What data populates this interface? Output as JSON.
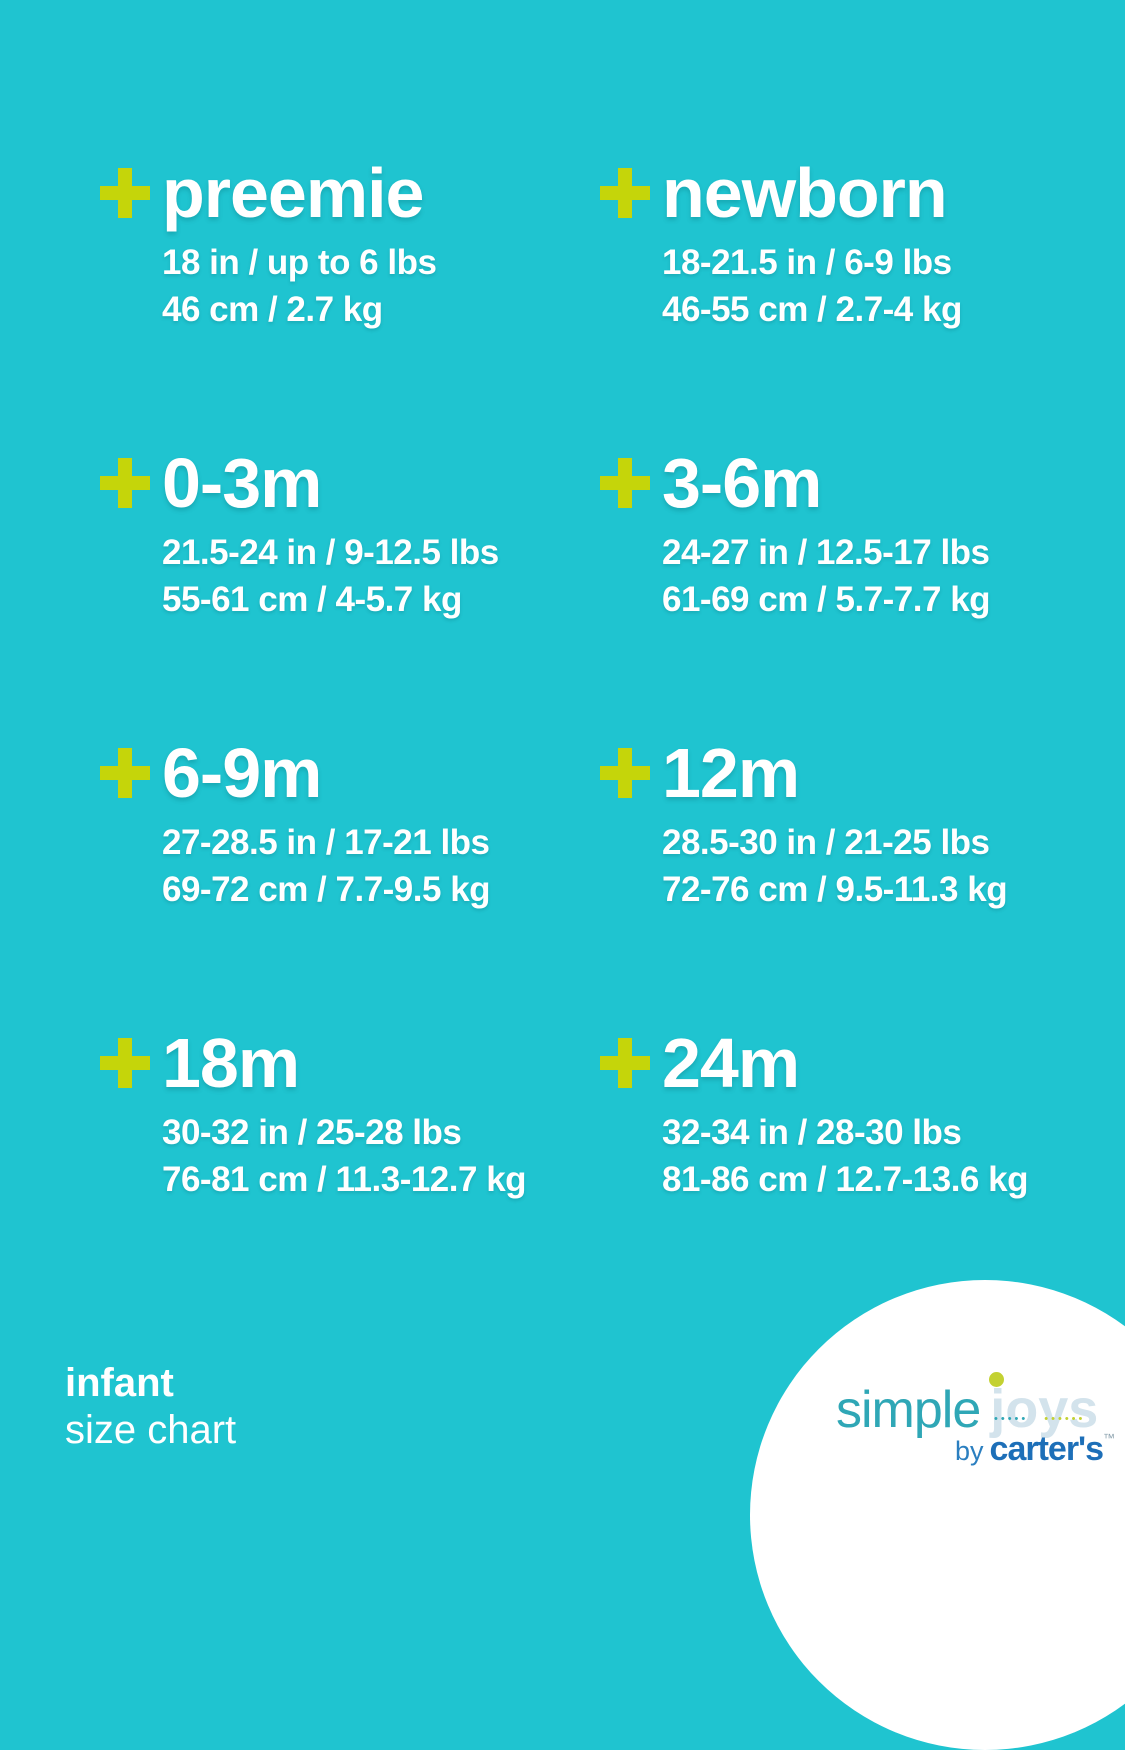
{
  "page": {
    "background": "#1fc4d0",
    "accent_plus": "#c5d50a",
    "text_color": "#ffffff"
  },
  "chart_data": {
    "type": "table",
    "title": "infant size chart",
    "columns": [
      "size",
      "height_imperial",
      "weight_imperial",
      "height_metric",
      "weight_metric"
    ],
    "rows": [
      [
        "preemie",
        "18 in",
        "up to 6 lbs",
        "46 cm",
        "2.7 kg"
      ],
      [
        "newborn",
        "18-21.5 in",
        "6-9 lbs",
        "46-55 cm",
        "2.7-4 kg"
      ],
      [
        "0-3m",
        "21.5-24 in",
        "9-12.5 lbs",
        "55-61 cm",
        "4-5.7 kg"
      ],
      [
        "3-6m",
        "24-27 in",
        "12.5-17 lbs",
        "61-69 cm",
        "5.7-7.7 kg"
      ],
      [
        "6-9m",
        "27-28.5 in",
        "17-21 lbs",
        "69-72 cm",
        "7.7-9.5 kg"
      ],
      [
        "12m",
        "28.5-30 in",
        "21-25 lbs",
        "72-76 cm",
        "9.5-11.3 kg"
      ],
      [
        "18m",
        "30-32 in",
        "25-28 lbs",
        "76-81 cm",
        "11.3-12.7 kg"
      ],
      [
        "24m",
        "32-34 in",
        "28-30 lbs",
        "81-86 cm",
        "12.7-13.6 kg"
      ]
    ]
  },
  "sizes": [
    {
      "name": "preemie",
      "imperial": "18 in / up to 6 lbs",
      "metric": "46 cm / 2.7 kg"
    },
    {
      "name": "newborn",
      "imperial": "18-21.5 in / 6-9 lbs",
      "metric": "46-55 cm / 2.7-4 kg"
    },
    {
      "name": "0-3m",
      "imperial": "21.5-24 in / 9-12.5 lbs",
      "metric": "55-61 cm / 4-5.7 kg"
    },
    {
      "name": "3-6m",
      "imperial": "24-27 in / 12.5-17 lbs",
      "metric": "61-69 cm / 5.7-7.7 kg"
    },
    {
      "name": "6-9m",
      "imperial": "27-28.5 in / 17-21 lbs",
      "metric": "69-72 cm / 7.7-9.5 kg"
    },
    {
      "name": "12m",
      "imperial": "28.5-30 in / 21-25 lbs",
      "metric": "72-76 cm / 9.5-11.3 kg"
    },
    {
      "name": "18m",
      "imperial": "30-32 in / 25-28 lbs",
      "metric": "76-81 cm / 11.3-12.7 kg"
    },
    {
      "name": "24m",
      "imperial": "32-34 in / 28-30 lbs",
      "metric": "81-86 cm / 12.7-13.6 kg"
    }
  ],
  "footer": {
    "title": "infant",
    "subtitle": "size chart"
  },
  "logo": {
    "simple": "simple",
    "joys": "joys",
    "by": "by",
    "brand": "carter's",
    "trademark": "™",
    "dots_left": "•••••",
    "dots_right": "••••••",
    "colors": {
      "simple": "#2fa7b6",
      "joys": "#d3e3ec",
      "dot": "#c3d132",
      "by": "#2b7fc0",
      "brand": "#1d6fb8"
    }
  }
}
